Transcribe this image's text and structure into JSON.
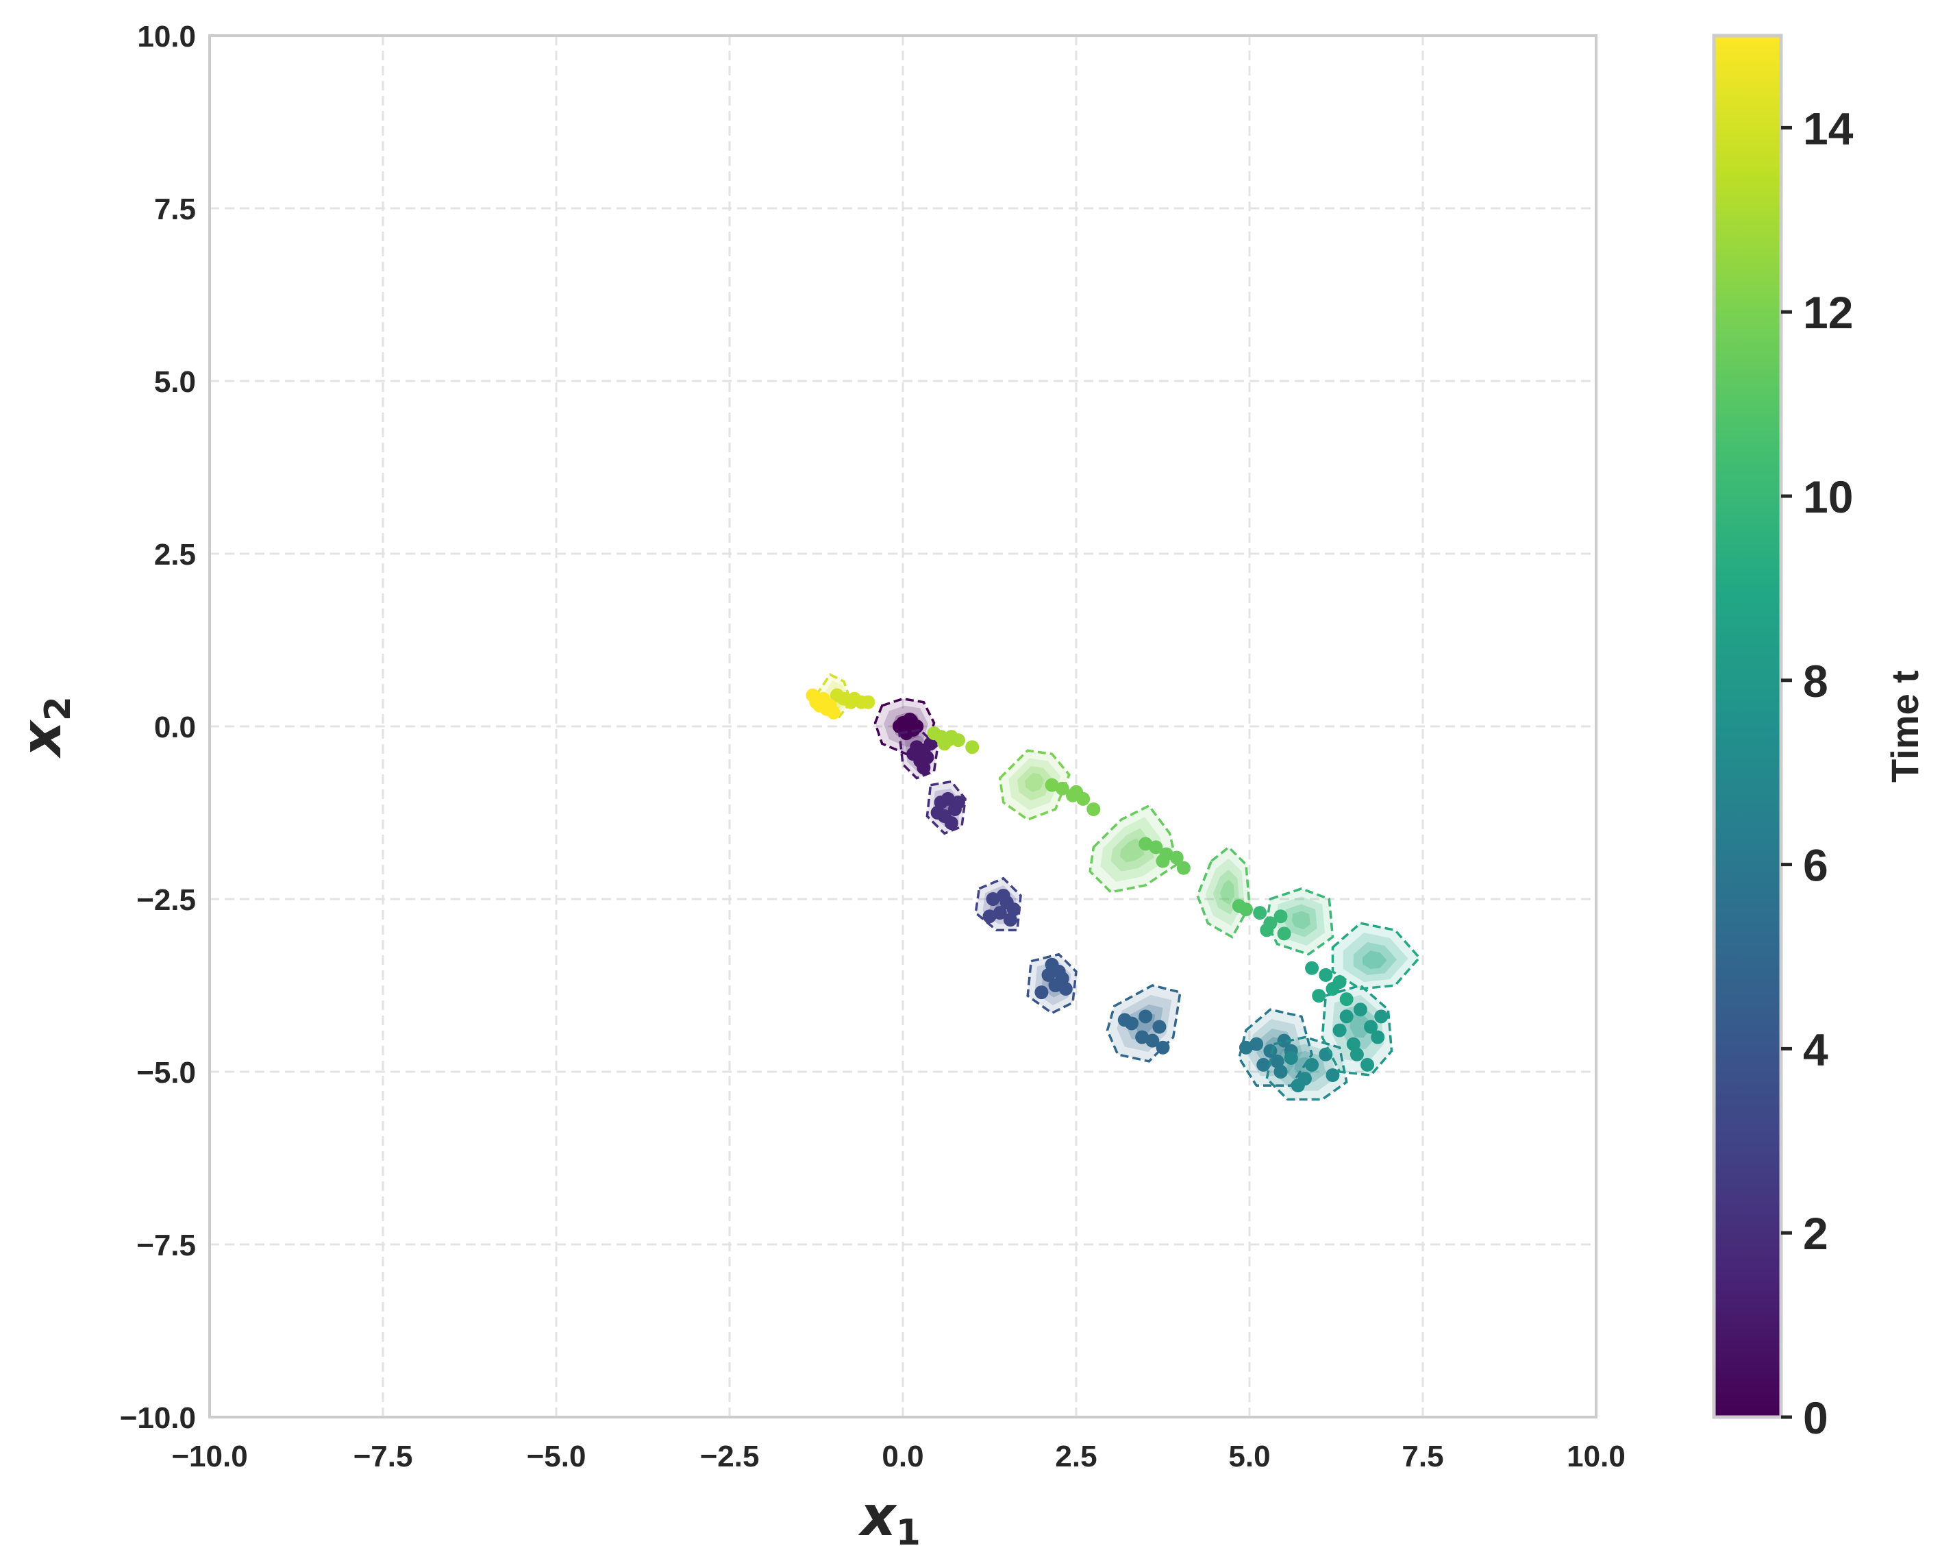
{
  "chart_data": {
    "type": "scatter",
    "title": "",
    "xlabel": "x",
    "xlabel_sub": "1",
    "ylabel": "x",
    "ylabel_sub": "2",
    "xlim": [
      -10,
      10
    ],
    "ylim": [
      -10,
      10
    ],
    "xticks": [
      -10,
      -7.5,
      -5,
      -2.5,
      0,
      2.5,
      5,
      7.5,
      10
    ],
    "yticks": [
      -10,
      -7.5,
      -5,
      -2.5,
      0,
      2.5,
      5,
      7.5,
      10
    ],
    "xtick_labels": [
      "−10.0",
      "−7.5",
      "−5.0",
      "−2.5",
      "0.0",
      "2.5",
      "5.0",
      "7.5",
      "10.0"
    ],
    "ytick_labels": [
      "−10.0",
      "−7.5",
      "−5.0",
      "−2.5",
      "0.0",
      "2.5",
      "5.0",
      "7.5",
      "10.0"
    ],
    "grid": true,
    "colorbar": {
      "label": "Time t",
      "range": [
        0,
        15
      ],
      "ticks": [
        0,
        2,
        4,
        6,
        8,
        10,
        12,
        14
      ],
      "tick_labels": [
        "0",
        "2",
        "4",
        "6",
        "8",
        "10",
        "12",
        "14"
      ],
      "colormap": "viridis"
    },
    "clusters": [
      {
        "t": 0,
        "center": [
          0.1,
          0.0
        ],
        "hull": [
          [
            -0.3,
            0.3
          ],
          [
            0.0,
            0.4
          ],
          [
            0.3,
            0.35
          ],
          [
            0.45,
            0.05
          ],
          [
            0.35,
            -0.3
          ],
          [
            0.05,
            -0.4
          ],
          [
            -0.3,
            -0.25
          ],
          [
            -0.4,
            0.05
          ]
        ],
        "points": [
          [
            0.0,
            0.05
          ],
          [
            0.1,
            0.1
          ],
          [
            0.15,
            -0.05
          ],
          [
            0.05,
            -0.1
          ],
          [
            0.2,
            0.0
          ],
          [
            -0.05,
            0.0
          ],
          [
            0.12,
            0.08
          ],
          [
            0.08,
            -0.02
          ]
        ]
      },
      {
        "t": 1,
        "center": [
          0.25,
          -0.4
        ],
        "hull": [
          [
            -0.05,
            -0.1
          ],
          [
            0.25,
            -0.05
          ],
          [
            0.5,
            -0.3
          ],
          [
            0.45,
            -0.65
          ],
          [
            0.2,
            -0.75
          ],
          [
            0.0,
            -0.55
          ]
        ],
        "points": [
          [
            0.2,
            -0.3
          ],
          [
            0.3,
            -0.35
          ],
          [
            0.25,
            -0.5
          ],
          [
            0.35,
            -0.45
          ],
          [
            0.15,
            -0.4
          ],
          [
            0.4,
            -0.25
          ],
          [
            0.3,
            -0.6
          ]
        ]
      },
      {
        "t": 2,
        "center": [
          0.65,
          -1.2
        ],
        "hull": [
          [
            0.4,
            -0.85
          ],
          [
            0.7,
            -0.8
          ],
          [
            0.9,
            -1.05
          ],
          [
            0.85,
            -1.45
          ],
          [
            0.6,
            -1.55
          ],
          [
            0.35,
            -1.3
          ]
        ],
        "points": [
          [
            0.55,
            -1.1
          ],
          [
            0.65,
            -1.05
          ],
          [
            0.75,
            -1.2
          ],
          [
            0.6,
            -1.3
          ],
          [
            0.7,
            -1.4
          ],
          [
            0.5,
            -1.25
          ],
          [
            0.8,
            -1.1
          ]
        ]
      },
      {
        "t": 3,
        "center": [
          1.45,
          -2.6
        ],
        "hull": [
          [
            1.1,
            -2.35
          ],
          [
            1.45,
            -2.2
          ],
          [
            1.7,
            -2.45
          ],
          [
            1.65,
            -2.95
          ],
          [
            1.35,
            -2.95
          ],
          [
            1.05,
            -2.7
          ]
        ],
        "points": [
          [
            1.3,
            -2.5
          ],
          [
            1.5,
            -2.55
          ],
          [
            1.4,
            -2.7
          ],
          [
            1.6,
            -2.65
          ],
          [
            1.25,
            -2.75
          ],
          [
            1.55,
            -2.8
          ],
          [
            1.45,
            -2.45
          ]
        ]
      },
      {
        "t": 4,
        "center": [
          2.2,
          -3.7
        ],
        "hull": [
          [
            1.85,
            -3.4
          ],
          [
            2.25,
            -3.3
          ],
          [
            2.5,
            -3.55
          ],
          [
            2.45,
            -4.0
          ],
          [
            2.15,
            -4.15
          ],
          [
            1.8,
            -3.9
          ]
        ],
        "points": [
          [
            2.1,
            -3.6
          ],
          [
            2.25,
            -3.55
          ],
          [
            2.2,
            -3.75
          ],
          [
            2.35,
            -3.8
          ],
          [
            2.0,
            -3.85
          ],
          [
            2.3,
            -3.65
          ],
          [
            2.15,
            -3.45
          ]
        ]
      },
      {
        "t": 5,
        "center": [
          3.5,
          -4.3
        ],
        "hull": [
          [
            3.05,
            -4.05
          ],
          [
            3.6,
            -3.75
          ],
          [
            4.0,
            -3.85
          ],
          [
            3.9,
            -4.5
          ],
          [
            3.55,
            -4.85
          ],
          [
            3.1,
            -4.75
          ],
          [
            2.95,
            -4.4
          ]
        ],
        "points": [
          [
            3.3,
            -4.3
          ],
          [
            3.5,
            -4.2
          ],
          [
            3.7,
            -4.35
          ],
          [
            3.45,
            -4.5
          ],
          [
            3.6,
            -4.55
          ],
          [
            3.2,
            -4.25
          ],
          [
            3.75,
            -4.65
          ]
        ]
      },
      {
        "t": 6,
        "center": [
          5.35,
          -4.65
        ],
        "hull": [
          [
            4.95,
            -4.4
          ],
          [
            5.3,
            -4.1
          ],
          [
            5.75,
            -4.2
          ],
          [
            5.9,
            -4.75
          ],
          [
            5.6,
            -5.2
          ],
          [
            5.1,
            -5.2
          ],
          [
            4.85,
            -4.8
          ]
        ],
        "points": [
          [
            5.1,
            -4.6
          ],
          [
            5.3,
            -4.7
          ],
          [
            5.5,
            -4.55
          ],
          [
            5.4,
            -4.85
          ],
          [
            5.2,
            -4.9
          ],
          [
            5.6,
            -4.7
          ],
          [
            4.95,
            -4.65
          ],
          [
            5.45,
            -5.0
          ]
        ]
      },
      {
        "t": 7,
        "center": [
          5.8,
          -4.9
        ],
        "hull": [
          [
            5.35,
            -4.6
          ],
          [
            5.8,
            -4.5
          ],
          [
            6.3,
            -4.65
          ],
          [
            6.4,
            -5.15
          ],
          [
            6.05,
            -5.4
          ],
          [
            5.55,
            -5.4
          ],
          [
            5.25,
            -5.1
          ]
        ],
        "points": [
          [
            5.6,
            -4.8
          ],
          [
            5.9,
            -4.9
          ],
          [
            6.1,
            -4.75
          ],
          [
            5.8,
            -5.1
          ],
          [
            6.2,
            -5.05
          ],
          [
            5.7,
            -5.2
          ]
        ]
      },
      {
        "t": 8,
        "center": [
          6.6,
          -4.3
        ],
        "hull": [
          [
            6.1,
            -3.9
          ],
          [
            6.6,
            -3.75
          ],
          [
            7.0,
            -4.1
          ],
          [
            7.05,
            -4.7
          ],
          [
            6.75,
            -5.05
          ],
          [
            6.3,
            -5.0
          ],
          [
            6.05,
            -4.5
          ]
        ],
        "points": [
          [
            6.4,
            -4.2
          ],
          [
            6.6,
            -4.1
          ],
          [
            6.75,
            -4.35
          ],
          [
            6.5,
            -4.6
          ],
          [
            6.85,
            -4.5
          ],
          [
            6.3,
            -4.4
          ],
          [
            6.7,
            -4.9
          ],
          [
            6.55,
            -4.75
          ],
          [
            6.9,
            -4.2
          ]
        ]
      },
      {
        "t": 9,
        "center": [
          6.8,
          -3.4
        ],
        "hull": [
          [
            6.2,
            -3.2
          ],
          [
            6.6,
            -2.85
          ],
          [
            7.1,
            -2.95
          ],
          [
            7.45,
            -3.35
          ],
          [
            7.1,
            -3.75
          ],
          [
            6.6,
            -3.8
          ],
          [
            6.2,
            -3.55
          ]
        ],
        "points": [
          [
            5.9,
            -3.5
          ],
          [
            6.1,
            -3.6
          ],
          [
            6.2,
            -3.8
          ],
          [
            6.3,
            -3.7
          ],
          [
            6.0,
            -3.9
          ],
          [
            6.4,
            -3.95
          ]
        ]
      },
      {
        "t": 10,
        "center": [
          5.75,
          -2.8
        ],
        "hull": [
          [
            5.3,
            -2.5
          ],
          [
            5.75,
            -2.35
          ],
          [
            6.15,
            -2.5
          ],
          [
            6.2,
            -3.05
          ],
          [
            5.85,
            -3.3
          ],
          [
            5.4,
            -3.15
          ],
          [
            5.25,
            -2.85
          ]
        ],
        "points": [
          [
            5.15,
            -2.7
          ],
          [
            5.3,
            -2.85
          ],
          [
            5.45,
            -2.75
          ],
          [
            5.25,
            -2.95
          ],
          [
            5.5,
            -3.0
          ]
        ]
      },
      {
        "t": 11,
        "center": [
          4.7,
          -2.4
        ],
        "hull": [
          [
            4.45,
            -1.95
          ],
          [
            4.7,
            -1.75
          ],
          [
            4.95,
            -2.0
          ],
          [
            5.0,
            -2.6
          ],
          [
            4.75,
            -3.05
          ],
          [
            4.4,
            -2.85
          ],
          [
            4.25,
            -2.45
          ]
        ],
        "points": [
          [
            4.85,
            -2.6
          ],
          [
            4.95,
            -2.65
          ]
        ]
      },
      {
        "t": 11.5,
        "center": [
          3.3,
          -1.8
        ],
        "hull": [
          [
            2.75,
            -1.75
          ],
          [
            3.15,
            -1.35
          ],
          [
            3.55,
            -1.15
          ],
          [
            3.85,
            -1.55
          ],
          [
            3.95,
            -2.0
          ],
          [
            3.5,
            -2.3
          ],
          [
            3.0,
            -2.4
          ],
          [
            2.7,
            -2.1
          ]
        ],
        "points": [
          [
            3.5,
            -1.7
          ],
          [
            3.65,
            -1.75
          ],
          [
            3.8,
            -1.85
          ],
          [
            3.95,
            -1.9
          ],
          [
            4.05,
            -2.05
          ],
          [
            3.75,
            -1.95
          ]
        ]
      },
      {
        "t": 12,
        "center": [
          1.9,
          -0.8
        ],
        "hull": [
          [
            1.4,
            -0.75
          ],
          [
            1.8,
            -0.35
          ],
          [
            2.15,
            -0.4
          ],
          [
            2.4,
            -0.7
          ],
          [
            2.2,
            -1.2
          ],
          [
            1.8,
            -1.35
          ],
          [
            1.45,
            -1.1
          ]
        ],
        "points": [
          [
            2.15,
            -0.85
          ],
          [
            2.3,
            -0.9
          ],
          [
            2.45,
            -1.0
          ],
          [
            2.6,
            -1.05
          ],
          [
            2.75,
            -1.2
          ],
          [
            2.5,
            -0.95
          ]
        ]
      },
      {
        "t": 13,
        "center": [
          0.55,
          -0.15
        ],
        "hull": [],
        "points": [
          [
            0.45,
            -0.1
          ],
          [
            0.55,
            -0.15
          ],
          [
            0.65,
            -0.2
          ],
          [
            0.8,
            -0.2
          ],
          [
            0.7,
            -0.15
          ],
          [
            1.0,
            -0.3
          ],
          [
            0.6,
            -0.25
          ]
        ]
      },
      {
        "t": 14,
        "center": [
          -0.9,
          0.4
        ],
        "hull": [
          [
            -1.25,
            0.45
          ],
          [
            -1.05,
            0.75
          ],
          [
            -0.85,
            0.65
          ],
          [
            -0.75,
            0.35
          ],
          [
            -0.95,
            0.1
          ],
          [
            -1.15,
            0.2
          ]
        ],
        "points": [
          [
            -0.85,
            0.4
          ],
          [
            -0.75,
            0.35
          ],
          [
            -0.6,
            0.35
          ],
          [
            -0.5,
            0.35
          ],
          [
            -0.95,
            0.45
          ],
          [
            -0.7,
            0.4
          ]
        ]
      },
      {
        "t": 15,
        "center": [
          -1.1,
          0.35
        ],
        "hull": [],
        "points": [
          [
            -1.3,
            0.45
          ],
          [
            -1.25,
            0.35
          ],
          [
            -1.15,
            0.4
          ],
          [
            -1.2,
            0.3
          ],
          [
            -1.05,
            0.3
          ],
          [
            -1.1,
            0.25
          ],
          [
            -1.0,
            0.2
          ]
        ]
      }
    ]
  }
}
